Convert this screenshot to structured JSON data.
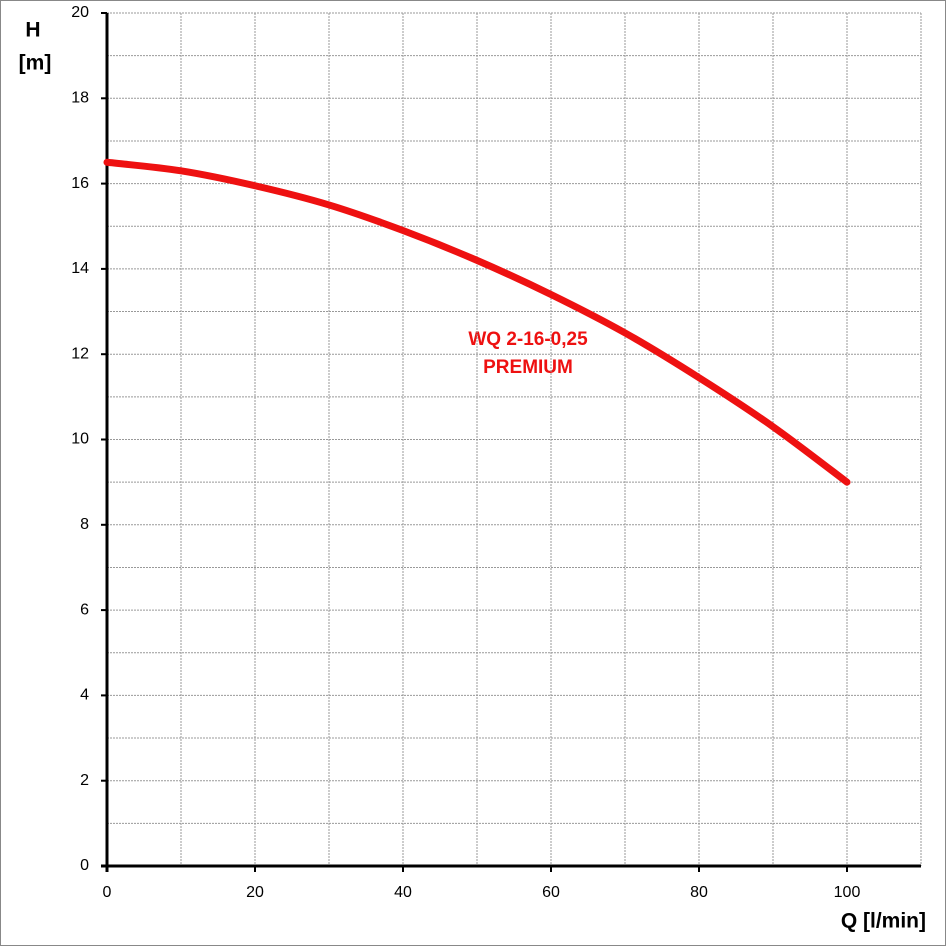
{
  "chart_data": {
    "type": "line",
    "y_label": "H",
    "y_unit": "[m]",
    "x_label": "Q [l/min]",
    "annotation": [
      "WQ 2-16-0,25",
      "PREMIUM"
    ],
    "x": [
      0,
      10,
      20,
      30,
      40,
      50,
      60,
      70,
      80,
      90,
      100
    ],
    "series": [
      {
        "name": "WQ 2-16-0,25 PREMIUM",
        "color": "#ee1111",
        "values": [
          16.5,
          16.3,
          15.95,
          15.5,
          14.9,
          14.2,
          13.4,
          12.5,
          11.45,
          10.3,
          9.0
        ]
      }
    ],
    "xlim": [
      0,
      110
    ],
    "ylim": [
      0,
      20
    ],
    "xticks": [
      0,
      20,
      40,
      60,
      80,
      100
    ],
    "yticks": [
      0,
      2,
      4,
      6,
      8,
      10,
      12,
      14,
      16,
      18,
      20
    ],
    "minor_xticks": [
      10,
      30,
      50,
      70,
      90,
      110
    ],
    "minor_yticks": [
      1,
      3,
      5,
      7,
      9,
      11,
      13,
      15,
      17,
      19
    ],
    "grid": true
  }
}
